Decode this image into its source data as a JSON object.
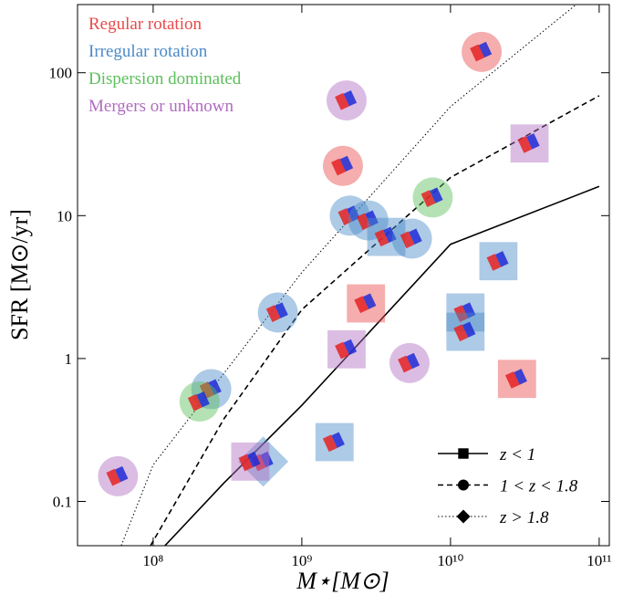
{
  "chart_data": {
    "type": "scatter",
    "x_label": "M⋆[M⊙]",
    "y_label": "SFR [M⊙/yr]",
    "xscale": "log",
    "yscale": "log",
    "xlim": [
      31000000.0,
      117000000000.0
    ],
    "ylim": [
      0.049,
      300
    ],
    "xticks": [
      {
        "value": 100000000.0,
        "label": "10⁸"
      },
      {
        "value": 1000000000.0,
        "label": "10⁹"
      },
      {
        "value": 10000000000.0,
        "label": "10¹⁰"
      },
      {
        "value": 100000000000.0,
        "label": "10¹¹"
      }
    ],
    "yticks": [
      0.1,
      1,
      10,
      100
    ],
    "series": [
      {
        "name": "Regular rotation",
        "color": "#e84a4a",
        "x": [
          16200000000.0,
          1890000000.0,
          2700000000.0,
          28000000000.0
        ],
        "y": [
          140,
          22.3,
          2.43,
          0.72
        ],
        "markers": [
          "circle",
          "circle",
          "square",
          "square"
        ]
      },
      {
        "name": "Irregular rotation",
        "color": "#4a8ac8",
        "x": [
          2100000000.0,
          2800000000.0,
          3700000000.0,
          5500000000.0,
          21000000000.0,
          690000000.0,
          12600000000.0,
          12600000000.0,
          246000000.0,
          1660000000.0,
          550000000.0
        ],
        "y": [
          10,
          9.25,
          7.1,
          6.9,
          4.8,
          2.1,
          2.1,
          1.54,
          0.61,
          0.26,
          0.19
        ],
        "markers": [
          "circle",
          "circle",
          "square",
          "circle",
          "square",
          "circle",
          "square",
          "square",
          "circle",
          "square",
          "diamond"
        ]
      },
      {
        "name": "Dispersion dominated",
        "color": "#5cbf5c",
        "x": [
          7600000000.0,
          205000000.0
        ],
        "y": [
          13.4,
          0.5
        ],
        "markers": [
          "circle",
          "circle"
        ]
      },
      {
        "name": "Mergers or unknown",
        "color": "#b06cc0",
        "x": [
          2000000000.0,
          34000000000.0,
          2000000000.0,
          5300000000.0,
          450000000.0,
          58000000.0
        ],
        "y": [
          64,
          32,
          1.16,
          0.93,
          0.19,
          0.15
        ],
        "markers": [
          "circle",
          "square",
          "square",
          "circle",
          "square",
          "circle"
        ]
      }
    ],
    "lines": [
      {
        "name": "z < 1",
        "dash": "solid",
        "marker": "square",
        "x": [
          120000000.0,
          300000000.0,
          1000000000.0,
          10000000000.0,
          100000000000.0
        ],
        "y": [
          0.049,
          0.135,
          0.47,
          6.3,
          16
        ]
      },
      {
        "name": "1 < z < 1.8",
        "dash": "dashed",
        "marker": "circle",
        "x": [
          96000000.0,
          300000000.0,
          1000000000.0,
          10000000000.0,
          100000000000.0
        ],
        "y": [
          0.049,
          0.38,
          2.2,
          18.5,
          69
        ]
      },
      {
        "name": "z > 1.8",
        "dash": "dotted",
        "marker": "diamond",
        "x": [
          61000000.0,
          100000000.0,
          1000000000.0,
          10000000000.0,
          70000000000.0
        ],
        "y": [
          0.049,
          0.18,
          4,
          58,
          300
        ]
      }
    ]
  }
}
